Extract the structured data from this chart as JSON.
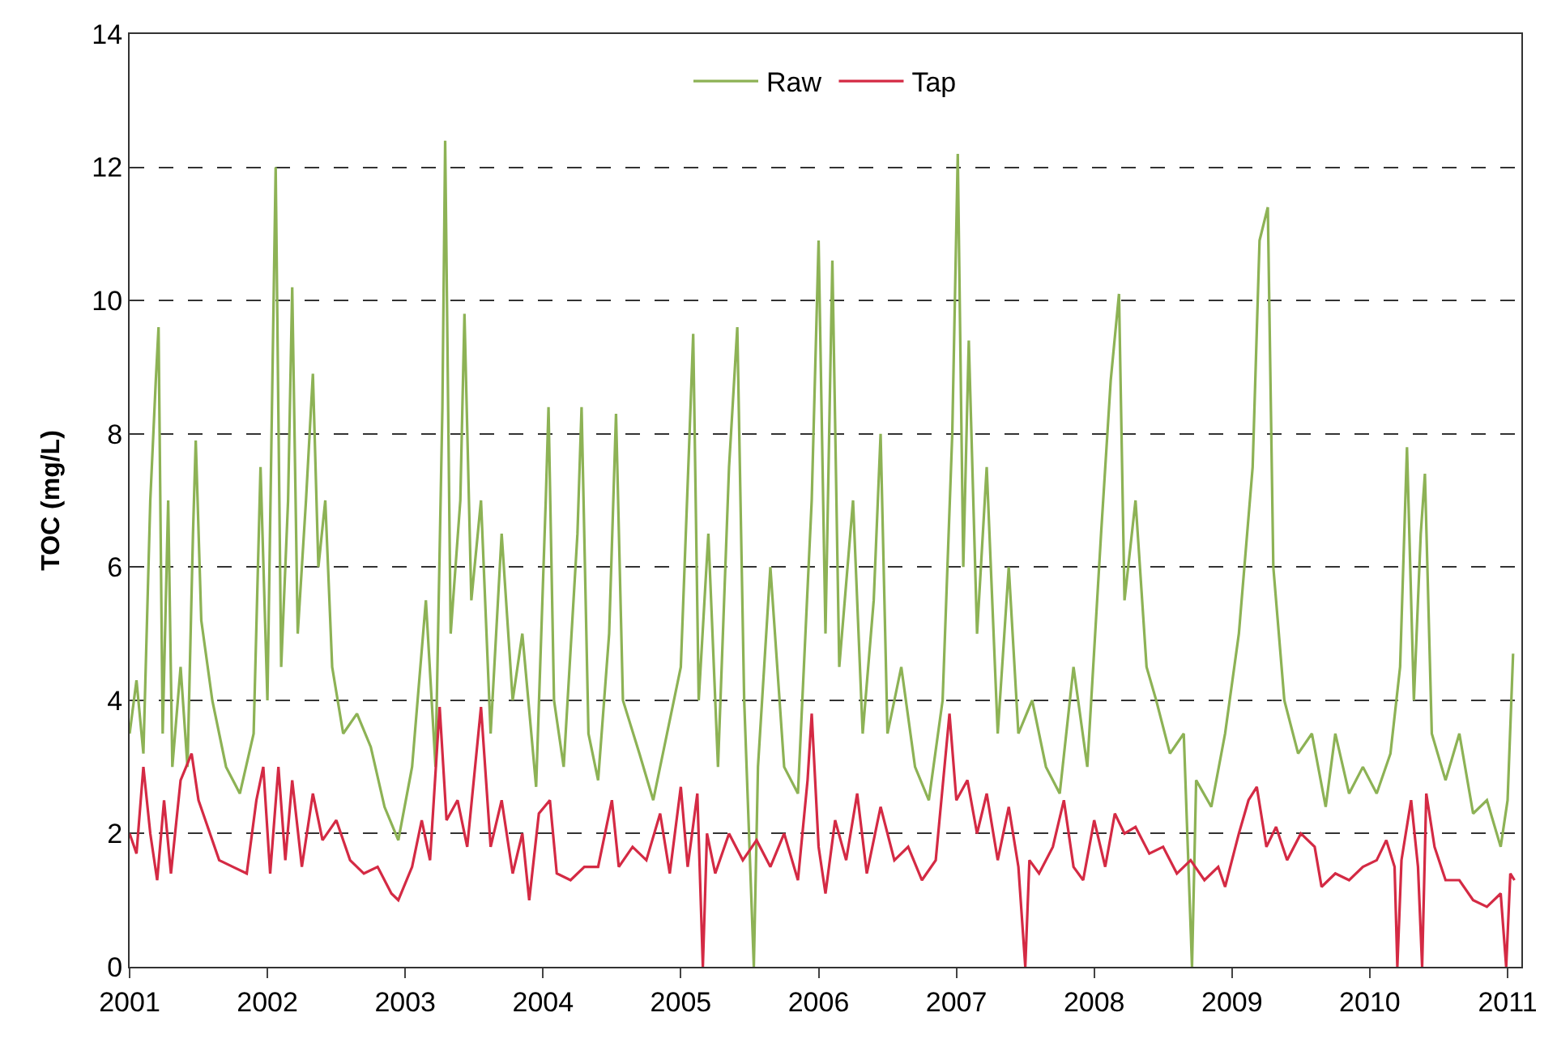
{
  "chart_data": {
    "type": "line",
    "ylabel": "TOC (mg/L)",
    "xlim": [
      2001,
      2011.1
    ],
    "xticks": [
      2001,
      2002,
      2003,
      2004,
      2005,
      2006,
      2007,
      2008,
      2009,
      2010,
      2011
    ],
    "ylim": [
      0,
      14
    ],
    "yticks": [
      0,
      2,
      4,
      6,
      8,
      10,
      12,
      14
    ],
    "grid": "y",
    "legend": "top",
    "marker": "none",
    "line_style": "solid",
    "series": [
      {
        "name": "Raw",
        "color": "#8db255",
        "x": [
          2001.0,
          2001.05,
          2001.1,
          2001.15,
          2001.19,
          2001.21,
          2001.24,
          2001.28,
          2001.31,
          2001.37,
          2001.42,
          2001.46,
          2001.48,
          2001.52,
          2001.6,
          2001.7,
          2001.8,
          2001.9,
          2001.95,
          2002.0,
          2002.06,
          2002.1,
          2002.15,
          2002.18,
          2002.22,
          2002.28,
          2002.33,
          2002.37,
          2002.42,
          2002.47,
          2002.55,
          2002.65,
          2002.75,
          2002.85,
          2002.95,
          2003.05,
          2003.15,
          2003.22,
          2003.27,
          2003.29,
          2003.33,
          2003.4,
          2003.43,
          2003.48,
          2003.55,
          2003.62,
          2003.7,
          2003.78,
          2003.85,
          2003.95,
          2004.02,
          2004.04,
          2004.08,
          2004.15,
          2004.25,
          2004.28,
          2004.33,
          2004.4,
          2004.48,
          2004.53,
          2004.58,
          2004.7,
          2004.8,
          2004.9,
          2005.0,
          2005.06,
          2005.09,
          2005.13,
          2005.2,
          2005.27,
          2005.35,
          2005.41,
          2005.46,
          2005.53,
          2005.56,
          2005.65,
          2005.75,
          2005.85,
          2005.95,
          2006.0,
          2006.05,
          2006.1,
          2006.15,
          2006.25,
          2006.32,
          2006.4,
          2006.45,
          2006.5,
          2006.6,
          2006.7,
          2006.8,
          2006.9,
          2006.97,
          2007.01,
          2007.05,
          2007.09,
          2007.15,
          2007.22,
          2007.3,
          2007.38,
          2007.45,
          2007.55,
          2007.65,
          2007.75,
          2007.85,
          2007.95,
          2008.05,
          2008.12,
          2008.18,
          2008.22,
          2008.3,
          2008.38,
          2008.45,
          2008.55,
          2008.65,
          2008.71,
          2008.74,
          2008.85,
          2008.95,
          2009.05,
          2009.15,
          2009.2,
          2009.26,
          2009.3,
          2009.38,
          2009.48,
          2009.58,
          2009.68,
          2009.75,
          2009.85,
          2009.95,
          2010.05,
          2010.15,
          2010.22,
          2010.27,
          2010.32,
          2010.37,
          2010.4,
          2010.45,
          2010.55,
          2010.65,
          2010.75,
          2010.85,
          2010.95,
          2011.0,
          2011.04
        ],
        "values": [
          3.5,
          4.3,
          3.2,
          7.0,
          8.8,
          9.6,
          3.5,
          7.0,
          3.0,
          4.5,
          3.0,
          6.5,
          7.9,
          5.2,
          4.0,
          3.0,
          2.6,
          3.5,
          7.5,
          4.0,
          12.0,
          4.5,
          7.0,
          10.2,
          5.0,
          7.0,
          8.9,
          6.0,
          7.0,
          4.5,
          3.5,
          3.8,
          3.3,
          2.4,
          1.9,
          3.0,
          5.5,
          3.0,
          8.4,
          12.4,
          5.0,
          7.0,
          9.8,
          5.5,
          7.0,
          3.5,
          6.5,
          4.0,
          5.0,
          2.7,
          7.0,
          8.4,
          4.0,
          3.0,
          6.5,
          8.4,
          3.5,
          2.8,
          5.0,
          8.3,
          4.0,
          3.2,
          2.5,
          3.5,
          4.5,
          7.8,
          9.5,
          4.0,
          6.5,
          3.0,
          7.5,
          9.6,
          4.0,
          0.0,
          3.0,
          6.0,
          3.0,
          2.6,
          7.0,
          10.9,
          5.0,
          10.6,
          4.5,
          7.0,
          3.5,
          5.5,
          8.0,
          3.5,
          4.5,
          3.0,
          2.5,
          4.0,
          8.0,
          12.2,
          6.0,
          9.4,
          5.0,
          7.5,
          3.5,
          6.0,
          3.5,
          4.0,
          3.0,
          2.6,
          4.5,
          3.0,
          6.5,
          8.8,
          10.1,
          5.5,
          7.0,
          4.5,
          4.0,
          3.2,
          3.5,
          0.0,
          2.8,
          2.4,
          3.5,
          5.0,
          7.5,
          10.9,
          11.4,
          6.0,
          4.0,
          3.2,
          3.5,
          2.4,
          3.5,
          2.6,
          3.0,
          2.6,
          3.2,
          4.5,
          7.8,
          4.0,
          6.5,
          7.4,
          3.5,
          2.8,
          3.5,
          2.3,
          2.5,
          1.8,
          2.5,
          4.7
        ]
      },
      {
        "name": "Tap",
        "color": "#d42a44",
        "x": [
          2001.0,
          2001.05,
          2001.1,
          2001.15,
          2001.2,
          2001.25,
          2001.3,
          2001.37,
          2001.45,
          2001.5,
          2001.55,
          2001.65,
          2001.75,
          2001.85,
          2001.92,
          2001.97,
          2002.02,
          2002.08,
          2002.13,
          2002.18,
          2002.25,
          2002.33,
          2002.4,
          2002.5,
          2002.6,
          2002.7,
          2002.8,
          2002.9,
          2002.95,
          2003.05,
          2003.12,
          2003.18,
          2003.25,
          2003.3,
          2003.38,
          2003.45,
          2003.55,
          2003.62,
          2003.7,
          2003.78,
          2003.85,
          2003.9,
          2003.97,
          2004.05,
          2004.1,
          2004.2,
          2004.3,
          2004.4,
          2004.5,
          2004.55,
          2004.65,
          2004.75,
          2004.85,
          2004.92,
          2005.0,
          2005.05,
          2005.12,
          2005.16,
          2005.19,
          2005.25,
          2005.35,
          2005.45,
          2005.55,
          2005.65,
          2005.75,
          2005.85,
          2005.92,
          2005.95,
          2006.0,
          2006.05,
          2006.12,
          2006.2,
          2006.28,
          2006.35,
          2006.45,
          2006.55,
          2006.65,
          2006.75,
          2006.85,
          2006.95,
          2007.0,
          2007.08,
          2007.15,
          2007.22,
          2007.3,
          2007.38,
          2007.45,
          2007.5,
          2007.53,
          2007.6,
          2007.7,
          2007.78,
          2007.85,
          2007.92,
          2008.0,
          2008.08,
          2008.15,
          2008.22,
          2008.3,
          2008.4,
          2008.5,
          2008.6,
          2008.7,
          2008.8,
          2008.9,
          2008.95,
          2009.05,
          2009.12,
          2009.18,
          2009.25,
          2009.32,
          2009.4,
          2009.5,
          2009.6,
          2009.65,
          2009.75,
          2009.85,
          2009.95,
          2010.05,
          2010.12,
          2010.18,
          2010.2,
          2010.23,
          2010.3,
          2010.35,
          2010.38,
          2010.41,
          2010.47,
          2010.55,
          2010.65,
          2010.75,
          2010.85,
          2010.95,
          2010.99,
          2011.02,
          2011.05
        ],
        "values": [
          2.0,
          1.7,
          3.0,
          2.0,
          1.3,
          2.5,
          1.4,
          2.8,
          3.2,
          2.5,
          2.2,
          1.6,
          1.5,
          1.4,
          2.5,
          3.0,
          1.4,
          3.0,
          1.6,
          2.8,
          1.5,
          2.6,
          1.9,
          2.2,
          1.6,
          1.4,
          1.5,
          1.1,
          1.0,
          1.5,
          2.2,
          1.6,
          3.9,
          2.2,
          2.5,
          1.8,
          3.9,
          1.8,
          2.5,
          1.4,
          2.0,
          1.0,
          2.3,
          2.5,
          1.4,
          1.3,
          1.5,
          1.5,
          2.5,
          1.5,
          1.8,
          1.6,
          2.3,
          1.4,
          2.7,
          1.5,
          2.6,
          0.0,
          2.0,
          1.4,
          2.0,
          1.6,
          1.9,
          1.5,
          2.0,
          1.3,
          2.8,
          3.8,
          1.8,
          1.1,
          2.2,
          1.6,
          2.6,
          1.4,
          2.4,
          1.6,
          1.8,
          1.3,
          1.6,
          3.8,
          2.5,
          2.8,
          2.0,
          2.6,
          1.6,
          2.4,
          1.5,
          0.0,
          1.6,
          1.4,
          1.8,
          2.5,
          1.5,
          1.3,
          2.2,
          1.5,
          2.3,
          2.0,
          2.1,
          1.7,
          1.8,
          1.4,
          1.6,
          1.3,
          1.5,
          1.2,
          2.0,
          2.5,
          2.7,
          1.8,
          2.1,
          1.6,
          2.0,
          1.8,
          1.2,
          1.4,
          1.3,
          1.5,
          1.6,
          1.9,
          1.5,
          0.0,
          1.6,
          2.5,
          1.5,
          0.0,
          2.6,
          1.8,
          1.3,
          1.3,
          1.0,
          0.9,
          1.1,
          0.0,
          1.4,
          1.3
        ]
      }
    ]
  }
}
